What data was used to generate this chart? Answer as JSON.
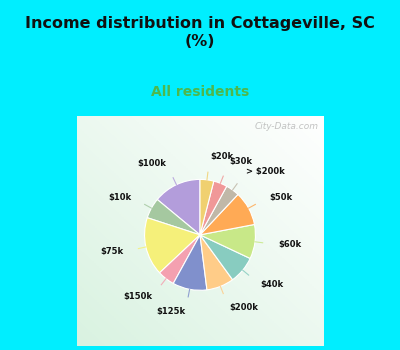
{
  "title": "Income distribution in Cottageville, SC\n(%)",
  "subtitle": "All residents",
  "title_color": "#111111",
  "subtitle_color": "#4db84d",
  "bg_cyan": "#00eeff",
  "watermark": "City-Data.com",
  "labels": [
    "$100k",
    "$10k",
    "$75k",
    "$150k",
    "$125k",
    "$200k",
    "$40k",
    "$60k",
    "$50k",
    "> $200k",
    "$30k",
    "$20k"
  ],
  "values": [
    14,
    6,
    17,
    5,
    10,
    8,
    8,
    10,
    10,
    4,
    4,
    4
  ],
  "colors": [
    "#b39ddb",
    "#a5c8a0",
    "#f5f07a",
    "#f4a0b0",
    "#8090cc",
    "#ffcc88",
    "#88ccc0",
    "#c8e888",
    "#ffaa55",
    "#c0b8a8",
    "#f09898",
    "#f0d070"
  ],
  "startangle": 90,
  "figsize": [
    4.0,
    3.5
  ],
  "dpi": 100
}
